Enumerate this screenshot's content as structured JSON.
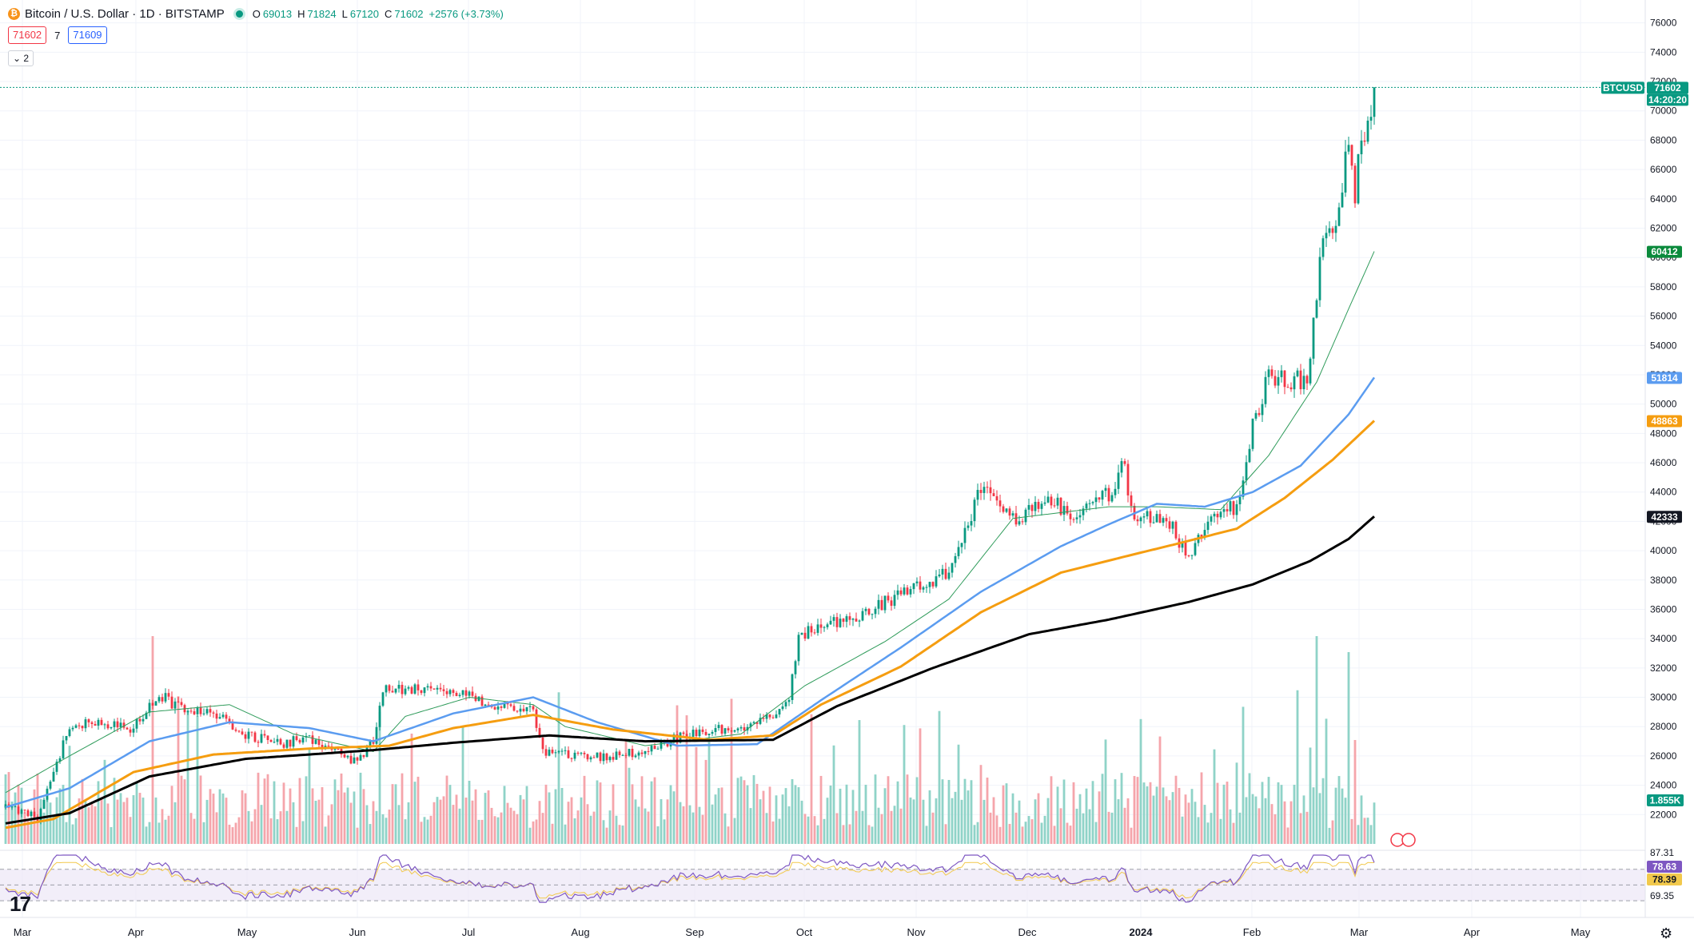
{
  "header": {
    "symbol_title": "Bitcoin / U.S. Dollar · 1D · BITSTAMP",
    "coin_glyph": "₿",
    "ohlc": [
      {
        "label": "O",
        "value": "69013"
      },
      {
        "label": "H",
        "value": "71824"
      },
      {
        "label": "L",
        "value": "67120"
      },
      {
        "label": "C",
        "value": "71602"
      }
    ],
    "change": "+2576 (+3.73%)",
    "bid": "71602",
    "spread": "7",
    "ask": "71609",
    "indicators_collapsed_label": "⌄ 2"
  },
  "colors": {
    "up": "#089981",
    "down": "#f23645",
    "vol_up": "#8fd3c8",
    "vol_down": "#f5a5ab",
    "ma20": "#2e9b5a",
    "ma50": "#5b9cf0",
    "ma100": "#f59d10",
    "ma200": "#000000",
    "rsi": "#7e57c2",
    "rsi_ma": "#f2c94c"
  },
  "chart_data": {
    "type": "candlestick",
    "symbol": "BTCUSD",
    "title": "Bitcoin / U.S. Dollar · 1D · BITSTAMP",
    "y_ticks": [
      "76000",
      "74000",
      "72000",
      "70000",
      "68000",
      "66000",
      "64000",
      "62000",
      "60000",
      "58000",
      "56000",
      "54000",
      "52000",
      "50000",
      "48000",
      "46000",
      "44000",
      "42000",
      "40000",
      "38000",
      "36000",
      "34000",
      "32000",
      "30000",
      "28000",
      "26000",
      "24000",
      "22000"
    ],
    "ylim": [
      20000,
      76800
    ],
    "x_ticks": [
      "Mar",
      "Apr",
      "May",
      "Jun",
      "Jul",
      "Aug",
      "Sep",
      "Oct",
      "Nov",
      "Dec",
      "2024",
      "Feb",
      "Mar",
      "Apr",
      "May"
    ],
    "close_anchors": [
      [
        0,
        22500
      ],
      [
        10,
        21800
      ],
      [
        20,
        28000
      ],
      [
        30,
        28300
      ],
      [
        40,
        27900
      ],
      [
        48,
        30200
      ],
      [
        55,
        29200
      ],
      [
        65,
        28900
      ],
      [
        75,
        27500
      ],
      [
        85,
        26800
      ],
      [
        95,
        27200
      ],
      [
        104,
        26300
      ],
      [
        110,
        25500
      ],
      [
        115,
        27000
      ],
      [
        118,
        30500
      ],
      [
        125,
        30500
      ],
      [
        135,
        30800
      ],
      [
        145,
        30000
      ],
      [
        155,
        29300
      ],
      [
        162,
        29400
      ],
      [
        165,
        29100
      ],
      [
        168,
        26300
      ],
      [
        180,
        25900
      ],
      [
        190,
        26000
      ],
      [
        200,
        26400
      ],
      [
        210,
        27200
      ],
      [
        220,
        27700
      ],
      [
        230,
        28000
      ],
      [
        238,
        28500
      ],
      [
        245,
        30000
      ],
      [
        248,
        34000
      ],
      [
        255,
        35000
      ],
      [
        265,
        35300
      ],
      [
        275,
        36500
      ],
      [
        285,
        37500
      ],
      [
        295,
        38500
      ],
      [
        300,
        41500
      ],
      [
        305,
        44200
      ],
      [
        315,
        42000
      ],
      [
        325,
        43500
      ],
      [
        335,
        42500
      ],
      [
        345,
        43900
      ],
      [
        350,
        46000
      ],
      [
        352,
        42500
      ],
      [
        360,
        42000
      ],
      [
        365,
        41500
      ],
      [
        370,
        39500
      ],
      [
        378,
        42800
      ],
      [
        385,
        43000
      ],
      [
        390,
        48500
      ],
      [
        395,
        52000
      ],
      [
        402,
        51500
      ],
      [
        407,
        51800
      ],
      [
        410,
        57000
      ],
      [
        412,
        62000
      ],
      [
        416,
        61500
      ],
      [
        420,
        68000
      ],
      [
        422,
        64000
      ],
      [
        424,
        68500
      ],
      [
        427,
        69013
      ],
      [
        428,
        71602
      ]
    ],
    "ma20_anchors": [
      [
        0,
        23500
      ],
      [
        20,
        26000
      ],
      [
        45,
        29000
      ],
      [
        70,
        29500
      ],
      [
        90,
        27500
      ],
      [
        115,
        26300
      ],
      [
        125,
        28700
      ],
      [
        145,
        30000
      ],
      [
        165,
        29500
      ],
      [
        175,
        28000
      ],
      [
        200,
        26700
      ],
      [
        230,
        27500
      ],
      [
        250,
        30800
      ],
      [
        275,
        33800
      ],
      [
        295,
        36700
      ],
      [
        315,
        42200
      ],
      [
        345,
        43000
      ],
      [
        360,
        43000
      ],
      [
        380,
        42800
      ],
      [
        395,
        46500
      ],
      [
        410,
        51500
      ],
      [
        420,
        56500
      ],
      [
        428,
        60412
      ]
    ],
    "ma50_anchors": [
      [
        0,
        22500
      ],
      [
        20,
        23800
      ],
      [
        45,
        27000
      ],
      [
        70,
        28300
      ],
      [
        95,
        27900
      ],
      [
        115,
        27000
      ],
      [
        140,
        28900
      ],
      [
        165,
        30000
      ],
      [
        185,
        28300
      ],
      [
        210,
        26700
      ],
      [
        235,
        26800
      ],
      [
        255,
        29800
      ],
      [
        280,
        33400
      ],
      [
        305,
        37200
      ],
      [
        330,
        40300
      ],
      [
        345,
        41800
      ],
      [
        360,
        43200
      ],
      [
        375,
        43000
      ],
      [
        390,
        44000
      ],
      [
        405,
        45800
      ],
      [
        420,
        49300
      ],
      [
        428,
        51814
      ]
    ],
    "ma100_anchors": [
      [
        0,
        21100
      ],
      [
        15,
        21700
      ],
      [
        40,
        24900
      ],
      [
        65,
        26100
      ],
      [
        95,
        26500
      ],
      [
        120,
        26700
      ],
      [
        140,
        27900
      ],
      [
        165,
        28800
      ],
      [
        190,
        27800
      ],
      [
        220,
        27100
      ],
      [
        240,
        27400
      ],
      [
        255,
        29500
      ],
      [
        280,
        32100
      ],
      [
        305,
        35800
      ],
      [
        330,
        38500
      ],
      [
        350,
        39600
      ],
      [
        365,
        40400
      ],
      [
        385,
        41500
      ],
      [
        400,
        43600
      ],
      [
        415,
        46200
      ],
      [
        428,
        48863
      ]
    ],
    "ma200_anchors": [
      [
        0,
        21400
      ],
      [
        20,
        22100
      ],
      [
        45,
        24600
      ],
      [
        75,
        25800
      ],
      [
        115,
        26400
      ],
      [
        140,
        26900
      ],
      [
        170,
        27400
      ],
      [
        200,
        27000
      ],
      [
        240,
        27100
      ],
      [
        260,
        29400
      ],
      [
        290,
        32000
      ],
      [
        320,
        34300
      ],
      [
        345,
        35300
      ],
      [
        370,
        36500
      ],
      [
        390,
        37700
      ],
      [
        408,
        39300
      ],
      [
        420,
        40800
      ],
      [
        428,
        42333
      ]
    ],
    "price_labels": [
      {
        "text": "BTCUSD",
        "value": 71602,
        "color": "#089981"
      },
      {
        "text": "71602",
        "value": 71602,
        "color": "#089981"
      },
      {
        "text": "14:20:20",
        "value": 71602,
        "color": "#089981"
      },
      {
        "text": "60412",
        "value": 60412,
        "color": "#0b8a3c"
      },
      {
        "text": "51814",
        "value": 51814,
        "color": "#5b9cf0"
      },
      {
        "text": "48863",
        "value": 48863,
        "color": "#f59d10"
      },
      {
        "text": "42333",
        "value": 42333,
        "color": "#131722"
      }
    ],
    "volume_label": "1.855K",
    "rsi": {
      "y_labels": [
        "87.31",
        "69.35"
      ],
      "value_labels": [
        {
          "text": "78.63",
          "value": 78.63,
          "color": "#7e57c2"
        },
        {
          "text": "78.39",
          "value": 78.39,
          "color": "#f2c94c"
        }
      ],
      "bands": [
        70,
        50,
        30
      ],
      "ylim": [
        20,
        90
      ]
    }
  }
}
